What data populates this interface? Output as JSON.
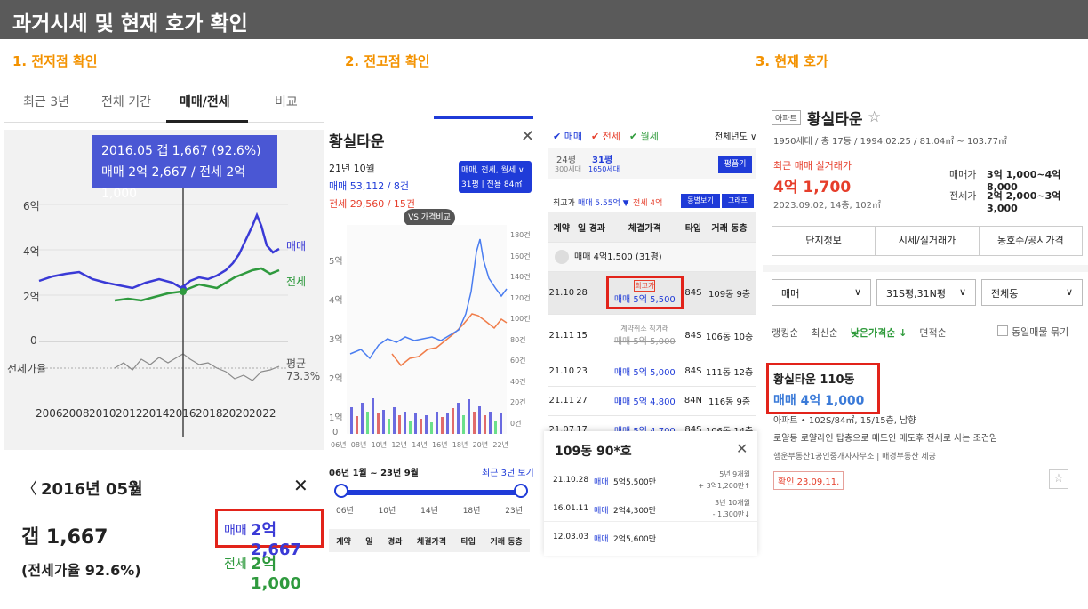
{
  "banner": "과거시세 및 현재 호가 확인",
  "sections": [
    "1. 전저점 확인",
    "2. 전고점 확인",
    "3. 현재 호가"
  ],
  "p1": {
    "tabs": [
      "최근 3년",
      "전체 기간",
      "매매/전세",
      "비교"
    ],
    "tooltip": {
      "line1": "2016.05  갭 1,667 (92.6%)",
      "line2": "매매 2억 2,667 / 전세 2억 1,000"
    },
    "y_labels": [
      "6억",
      "4억",
      "2억",
      "0"
    ],
    "ratio_label": "전세가율",
    "legend_sale": "매매",
    "legend_jeonse": "전세",
    "avg_label": "평균",
    "avg_value": "73.3%",
    "x_labels": [
      "2006",
      "2008",
      "2010",
      "2012",
      "2014",
      "2016",
      "2018",
      "2020",
      "2022"
    ],
    "colors": {
      "sale": "#3a3ad6",
      "jeonse": "#2f9a3e",
      "ratio": "#8a8a8a"
    },
    "detail": {
      "month": "2016년 05월",
      "gap": "갭 1,667",
      "ratio": "(전세가율 92.6%)",
      "sale_label": "매매",
      "sale_value": "2억 2,667",
      "jeonse_label": "전세",
      "jeonse_value": "2억 1,000"
    }
  },
  "p2": {
    "title": "황실타운",
    "month": "21년 10월",
    "sale_line": "매매 53,112 / 8건",
    "jeonse_line": "전세 29,560 / 15건",
    "filter_btn": "매매, 전세, 월세 ∨",
    "size_btn": "31평 | 전용 84㎡",
    "vs_btn": "VS 가격비교",
    "left_ticks": [
      "5억",
      "4억",
      "3억",
      "2억",
      "1억",
      "0"
    ],
    "right_ticks": [
      "180건",
      "160건",
      "140건",
      "120건",
      "100건",
      "80건",
      "60건",
      "40건",
      "20건",
      "0건"
    ],
    "x_ticks": [
      "06년",
      "08년",
      "10년",
      "12년",
      "14년",
      "16년",
      "18년",
      "20년",
      "22년"
    ],
    "range_label": "06년 1월 ~ 23년 9월",
    "recent_link": "최근 3년 보기",
    "slider_ticks": [
      "06년",
      "10년",
      "14년",
      "18년",
      "23년"
    ],
    "table_headers": [
      "계약",
      "일",
      "경과",
      "체결가격",
      "타입",
      "거래 동층"
    ]
  },
  "p3": {
    "checks": [
      "✔ 매매",
      "✔ 전세",
      "✔ 월세"
    ],
    "year_filter": "전체년도 ∨",
    "size_a": "24평",
    "size_a_sub": "300세대",
    "size_b": "31평",
    "size_b_sub": "1650세대",
    "pyeong_btn": "평품기",
    "max_label": "최고가",
    "max_sale": "매매 5.55억 ▼",
    "max_jeonse": "전세 4억",
    "btn_dong": "동별보기",
    "btn_graph": "그래프",
    "headers": [
      "계약",
      "일",
      "경과",
      "체결가격",
      "타입",
      "거래 동층"
    ],
    "avg_row": "매매 4억1,500 (31평)",
    "rows": [
      {
        "ym": "21.10",
        "d": "28",
        "tag": "최고가",
        "price": "매매 5억 5,500",
        "type": "84S",
        "loc": "109동",
        "fl": "9층"
      },
      {
        "ym": "21.11",
        "d": "15",
        "tag": "계약취소  직거래",
        "price": "매매 5억 5,000",
        "type": "84S",
        "loc": "106동",
        "fl": "10층"
      },
      {
        "ym": "21.10",
        "d": "23",
        "tag": "",
        "price": "매매 5억 5,000",
        "type": "84S",
        "loc": "111동",
        "fl": "12층"
      },
      {
        "ym": "21.11",
        "d": "27",
        "tag": "",
        "price": "매매 5억 4,800",
        "type": "84N",
        "loc": "116동",
        "fl": "9층"
      },
      {
        "ym": "21.07",
        "d": "17",
        "tag": "",
        "price": "매매 5억 4,700",
        "type": "84S",
        "loc": "106동",
        "fl": "14층"
      }
    ],
    "popup_title": "109동 90*호",
    "popup_rows": [
      {
        "date": "21.10.28",
        "kind": "매매",
        "price": "5억5,500만",
        "note1": "5년 9개월",
        "note2": "+ 3억1,200만↑"
      },
      {
        "date": "16.01.11",
        "kind": "매매",
        "price": "2억4,300만",
        "note1": "3년 10개월",
        "note2": "- 1,300만↓"
      },
      {
        "date": "12.03.03",
        "kind": "매매",
        "price": "2억5,600만",
        "note1": "",
        "note2": ""
      }
    ]
  },
  "p4": {
    "badge": "아파트",
    "name": "황실타운",
    "star": "☆",
    "info": "1950세대 / 총 17동 / 1994.02.25 / 81.04㎡ ~ 103.77㎡",
    "recent_label": "최근 매매 실거래가",
    "recent_price": "4억 1,700",
    "recent_meta": "2023.09.02, 14층, 102㎡",
    "sale_range_label": "매매가",
    "sale_range": "3억 1,000~4억 8,000",
    "jeonse_range_label": "전세가",
    "jeonse_range": "2억 2,000~3억 3,000",
    "tabs": [
      "단지정보",
      "시세/실거래가",
      "동호수/공시가격"
    ],
    "selects": [
      "매매",
      "31S평,31N평",
      "전체동"
    ],
    "sorts": [
      "랭킹순",
      "최신순",
      "낮은가격순 ↓",
      "면적순"
    ],
    "group_label": "동일매물 묶기",
    "listing_title": "황실타운 110동",
    "listing_price": "매매 4억 1,000",
    "listing_desc": "아파트 • 102S/84㎡, 15/15층, 남향",
    "listing_note": "로얄동 로얄라인 탑층으로 매도인 매도후 전세로 사는 조건임",
    "agents": "행운부동산1공인중개사사무소  |  매경부동산 제공",
    "confirm": "확인 23.09.11."
  }
}
